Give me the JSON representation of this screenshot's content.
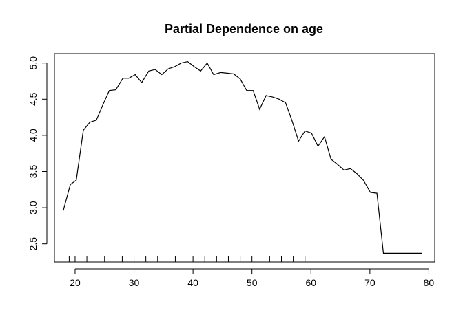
{
  "chart_data": {
    "type": "line",
    "title": "Partial Dependence on age",
    "xlabel": "",
    "ylabel": "",
    "xlim": [
      16.5,
      81
    ],
    "ylim": [
      2.25,
      5.13
    ],
    "xticks": [
      20,
      30,
      40,
      50,
      60,
      70,
      80
    ],
    "yticks": [
      2.5,
      3.0,
      3.5,
      4.0,
      4.5,
      5.0
    ],
    "xtick_labels": [
      "20",
      "30",
      "40",
      "50",
      "60",
      "70",
      "80"
    ],
    "ytick_labels": [
      "2.5",
      "3.0",
      "3.5",
      "4.0",
      "4.5",
      "5.0"
    ],
    "grid": false,
    "line_color": "#000000",
    "rug": [
      19,
      20,
      22,
      25,
      28,
      30,
      32,
      34,
      37,
      40,
      42,
      44,
      46,
      48,
      50,
      53,
      55,
      57,
      59
    ],
    "series": [
      {
        "x": [
          18,
          19.2,
          20.2,
          21.4,
          22.5,
          23.6,
          24.7,
          25.8,
          26.9,
          28.1,
          29.1,
          30.2,
          31.3,
          32.5,
          33.6,
          34.7,
          35.8,
          36.9,
          38.0,
          39.1,
          40.2,
          41.3,
          42.4,
          43.5,
          44.7,
          45.8,
          46.9,
          48.0,
          49.1,
          50.2,
          51.3,
          52.4,
          53.5,
          54.6,
          55.7,
          56.8,
          57.9,
          59.0,
          60.1,
          61.2,
          62.3,
          63.4,
          64.5,
          65.6,
          66.7,
          67.8,
          68.9,
          70.1,
          71.2,
          72.3,
          73.4,
          74.5,
          75.6,
          76.7,
          77.8,
          78.9
        ],
        "y": [
          2.96,
          3.32,
          3.38,
          4.07,
          4.18,
          4.21,
          4.42,
          4.62,
          4.63,
          4.79,
          4.79,
          4.84,
          4.73,
          4.89,
          4.91,
          4.84,
          4.92,
          4.95,
          5.0,
          5.02,
          4.95,
          4.89,
          5.0,
          4.84,
          4.87,
          4.86,
          4.85,
          4.78,
          4.62,
          4.62,
          4.36,
          4.55,
          4.53,
          4.5,
          4.45,
          4.2,
          3.92,
          4.06,
          4.03,
          3.85,
          3.98,
          3.67,
          3.6,
          3.52,
          3.54,
          3.47,
          3.38,
          3.21,
          3.2,
          2.37,
          2.37,
          2.37,
          2.37,
          2.37,
          2.37,
          2.37
        ]
      }
    ]
  }
}
